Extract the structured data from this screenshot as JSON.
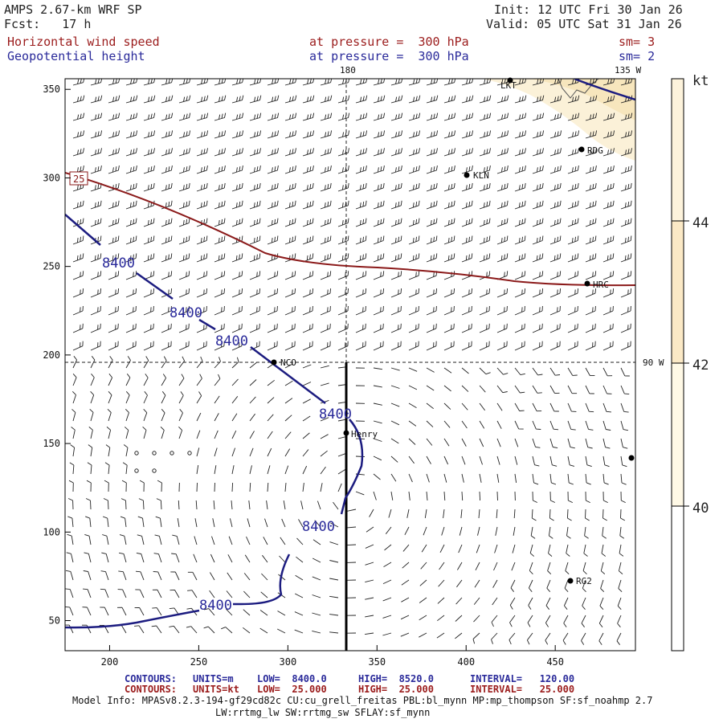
{
  "header": {
    "model_title": "AMPS 2.67-km WRF SP",
    "forecast": "Fcst:   17 h",
    "init": "Init: 12 UTC Fri 30 Jan 26",
    "valid": "Valid: 05 UTC Sat 31 Jan 26"
  },
  "variables": [
    {
      "name": "Horizontal wind speed",
      "level_label": "at pressure =  300 hPa",
      "smoothing": "sm= 3",
      "color": "#9b1c1c"
    },
    {
      "name": "Geopotential height",
      "level_label": "at pressure =  300 hPa",
      "smoothing": "sm= 2",
      "color": "#2a2a9a"
    }
  ],
  "map": {
    "lon_labels": {
      "top": "180",
      "top_right": "135 W",
      "right": "90 W"
    },
    "contour_label": "8400",
    "wind_contour_label": "25",
    "stations": [
      {
        "id": "LKT",
        "label": "LKT"
      },
      {
        "id": "RDG",
        "label": "RDG"
      },
      {
        "id": "KLN",
        "label": "KLN"
      },
      {
        "id": "HRC",
        "label": "HRC"
      },
      {
        "id": "NCO",
        "label": "NCO"
      },
      {
        "id": "HENRY",
        "label": "Henry"
      },
      {
        "id": "RG2",
        "label": "RG2"
      },
      {
        "id": "EDGE",
        "label": ""
      }
    ],
    "x_axis": {
      "ticks": [
        200,
        250,
        300,
        350,
        400,
        450
      ],
      "range": [
        175,
        495
      ]
    },
    "y_axis": {
      "ticks": [
        50,
        100,
        150,
        200,
        250,
        300,
        350
      ],
      "range": [
        33,
        356
      ]
    }
  },
  "colorbar": {
    "unit": "kt",
    "ticks": [
      44,
      42,
      40
    ],
    "colors": [
      "#fdf3dc",
      "#fbe9c6",
      "#fff9e6"
    ]
  },
  "footer": {
    "contours_label": "CONTOURS:",
    "height": {
      "units": "UNITS=m",
      "low": "LOW=  8400.0",
      "high": "HIGH=  8520.0",
      "interval": "INTERVAL=   120.00"
    },
    "wind": {
      "units": "UNITS=kt",
      "low": "LOW=  25.000",
      "high": "HIGH=  25.000",
      "interval": "INTERVAL=   25.000"
    },
    "model_info": "Model Info: MPASv8.2.3-194-gf29cd82c CU:cu_grell_freitas PBL:bl_mynn MP:mp_thompson SF:sf_noahmp 2.7",
    "model_info_2": "LW:rrtmg_lw SW:rrtmg_sw SFLAY:sf_mynn"
  }
}
